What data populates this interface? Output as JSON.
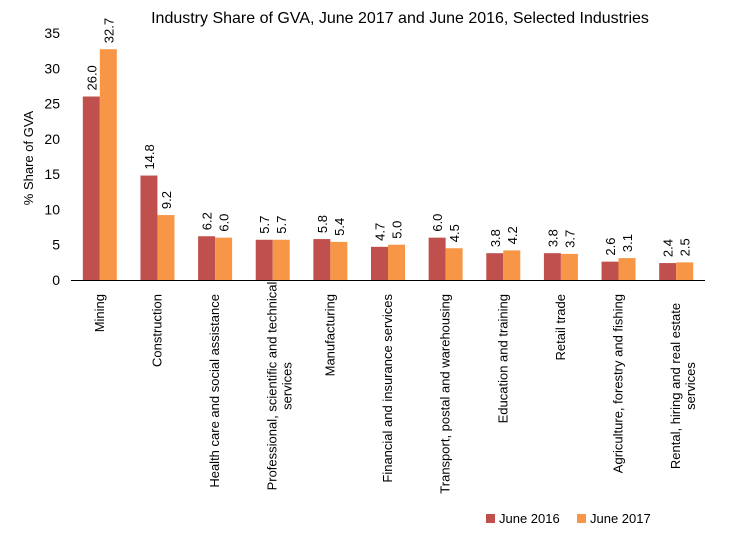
{
  "chart_data": {
    "type": "bar",
    "title": "Industry Share of GVA, June 2017 and June 2016, Selected Industries",
    "ylabel": "% Share of GVA",
    "xlabel": "",
    "ylim": [
      0,
      35
    ],
    "yticks": [
      "0",
      "5",
      "10",
      "15",
      "20",
      "25",
      "30",
      "35"
    ],
    "grid": false,
    "legend_position": "bottom-right",
    "categories": [
      [
        "Mining"
      ],
      [
        "Construction"
      ],
      [
        "Health care and social assistance"
      ],
      [
        "Professional, scientific and technical",
        "services"
      ],
      [
        "Manufacturing"
      ],
      [
        "Financial and insurance services"
      ],
      [
        "Transport, postal and warehousing"
      ],
      [
        "Education and training"
      ],
      [
        "Retail trade"
      ],
      [
        "Agriculture, forestry and fishing"
      ],
      [
        "Rental, hiring and real estate",
        "services"
      ]
    ],
    "series": [
      {
        "name": "June 2016",
        "color": "#c0504d",
        "values": [
          26.0,
          14.8,
          6.2,
          5.7,
          5.8,
          4.7,
          6.0,
          3.8,
          3.8,
          2.6,
          2.4
        ],
        "labels": [
          "26.0",
          "14.8",
          "6.2",
          "5.7",
          "5.8",
          "4.7",
          "6.0",
          "3.8",
          "3.8",
          "2.6",
          "2.4"
        ]
      },
      {
        "name": "June 2017",
        "color": "#f79646",
        "values": [
          32.7,
          9.2,
          6.0,
          5.7,
          5.4,
          5.0,
          4.5,
          4.2,
          3.7,
          3.1,
          2.5
        ],
        "labels": [
          "32.7",
          "9.2",
          "6.0",
          "5.7",
          "5.4",
          "5.0",
          "4.5",
          "4.2",
          "3.7",
          "3.1",
          "2.5"
        ]
      }
    ]
  }
}
